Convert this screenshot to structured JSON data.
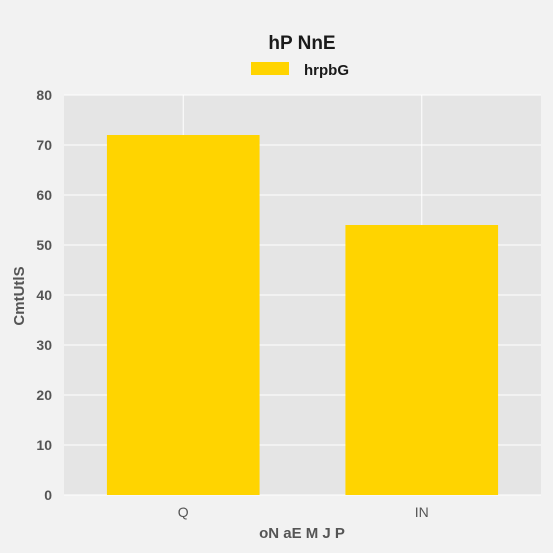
{
  "chart_data": {
    "type": "bar",
    "title": "hP NnE",
    "xlabel": "oN aE M J P",
    "ylabel": "CmtUtlS",
    "categories": [
      "Q",
      "IN"
    ],
    "series": [
      {
        "name": "hrpbG",
        "values": [
          72,
          54
        ],
        "color": "#ffd400"
      }
    ],
    "ylim": [
      0,
      80
    ],
    "yticks": [
      0,
      10,
      20,
      30,
      40,
      50,
      60,
      70,
      80
    ],
    "grid": true,
    "legend_position": "top-center",
    "colors": {
      "background": "#f2f2f2",
      "plot_background": "#e5e5e5",
      "grid": "#ffffff"
    }
  }
}
